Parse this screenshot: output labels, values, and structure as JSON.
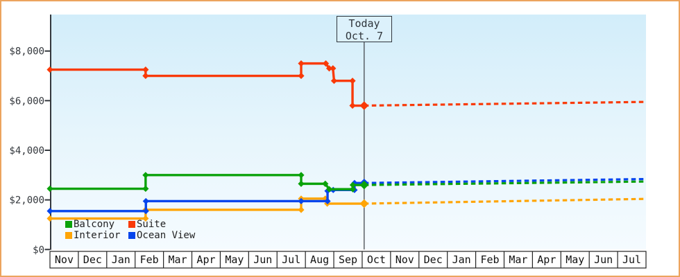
{
  "window": {
    "border_color": "#ECA45E",
    "background": "#FFFFFF"
  },
  "today_marker": {
    "line1": "Today",
    "line2": "Oct. 7"
  },
  "legend": {
    "items": [
      {
        "label": "Balcony",
        "color": "#0AA20A"
      },
      {
        "label": "Suite",
        "color": "#F93A08"
      },
      {
        "label": "Interior",
        "color": "#FFA506"
      },
      {
        "label": "Ocean View",
        "color": "#0545EC"
      }
    ]
  },
  "chart_data": {
    "type": "line",
    "title": "",
    "grid": "off",
    "legend_position": "bottom-left-inside",
    "x_axis": {
      "months": [
        "Nov",
        "Dec",
        "Jan",
        "Feb",
        "Mar",
        "Apr",
        "May",
        "Jun",
        "Jul",
        "Aug",
        "Sep",
        "Oct",
        "Nov",
        "Dec",
        "Jan",
        "Feb",
        "Mar",
        "Apr",
        "May",
        "Jun",
        "Jul"
      ],
      "label": ""
    },
    "y_axis": {
      "ticks": [
        {
          "label": "$8,000",
          "value": 8000
        },
        {
          "label": "$6,000",
          "value": 6000
        },
        {
          "label": "$4,000",
          "value": 4000
        },
        {
          "label": "$2,000",
          "value": 2000
        },
        {
          "label": "$0",
          "value": 0
        }
      ],
      "range": [
        0,
        9500
      ],
      "label": ""
    },
    "plot": {
      "bg_top": "#D2EDFA",
      "bg_mid": "#E6F5FC",
      "bg_bottom": "#F5FBFF",
      "axis_color": "#34383D",
      "today_line_color": "#44484D"
    },
    "today": {
      "month_float": 11.07,
      "date_label": "Oct. 7"
    },
    "series": [
      {
        "name": "Interior",
        "color": "#FFA506",
        "solid": [
          [
            0,
            1250
          ],
          [
            3.37,
            1250
          ],
          [
            3.37,
            1600
          ],
          [
            8.85,
            1600
          ],
          [
            8.85,
            2050
          ],
          [
            9.7,
            2050
          ],
          [
            9.77,
            1850
          ],
          [
            11.07,
            1850
          ]
        ],
        "projected": [
          [
            11.07,
            1850
          ],
          [
            20.98,
            2040
          ]
        ]
      },
      {
        "name": "Ocean View",
        "color": "#0545EC",
        "solid": [
          [
            0,
            1550
          ],
          [
            3.38,
            1550
          ],
          [
            3.38,
            1950
          ],
          [
            8.85,
            1950
          ],
          [
            9.78,
            1950
          ],
          [
            9.78,
            2360
          ],
          [
            9.98,
            2400
          ],
          [
            10.73,
            2400
          ],
          [
            10.73,
            2680
          ],
          [
            11.07,
            2680
          ]
        ],
        "projected": [
          [
            11.07,
            2680
          ],
          [
            20.98,
            2840
          ]
        ]
      },
      {
        "name": "Balcony",
        "color": "#0AA20A",
        "solid": [
          [
            0,
            2450
          ],
          [
            3.37,
            2450
          ],
          [
            3.37,
            3000
          ],
          [
            8.85,
            3000
          ],
          [
            8.85,
            2650
          ],
          [
            9.7,
            2650
          ],
          [
            9.84,
            2430
          ],
          [
            10.67,
            2430
          ],
          [
            10.67,
            2600
          ],
          [
            11.07,
            2600
          ]
        ],
        "projected": [
          [
            11.07,
            2600
          ],
          [
            20.98,
            2740
          ]
        ]
      },
      {
        "name": "Suite",
        "color": "#F93A08",
        "solid": [
          [
            0,
            7250
          ],
          [
            3.37,
            7250
          ],
          [
            3.37,
            7000
          ],
          [
            8.85,
            7000
          ],
          [
            8.85,
            7500
          ],
          [
            9.72,
            7500
          ],
          [
            9.84,
            7300
          ],
          [
            9.97,
            7300
          ],
          [
            10.01,
            6800
          ],
          [
            10.66,
            6800
          ],
          [
            10.66,
            5800
          ],
          [
            11.07,
            5800
          ]
        ],
        "projected": [
          [
            11.07,
            5800
          ],
          [
            20.98,
            5950
          ]
        ]
      }
    ]
  }
}
